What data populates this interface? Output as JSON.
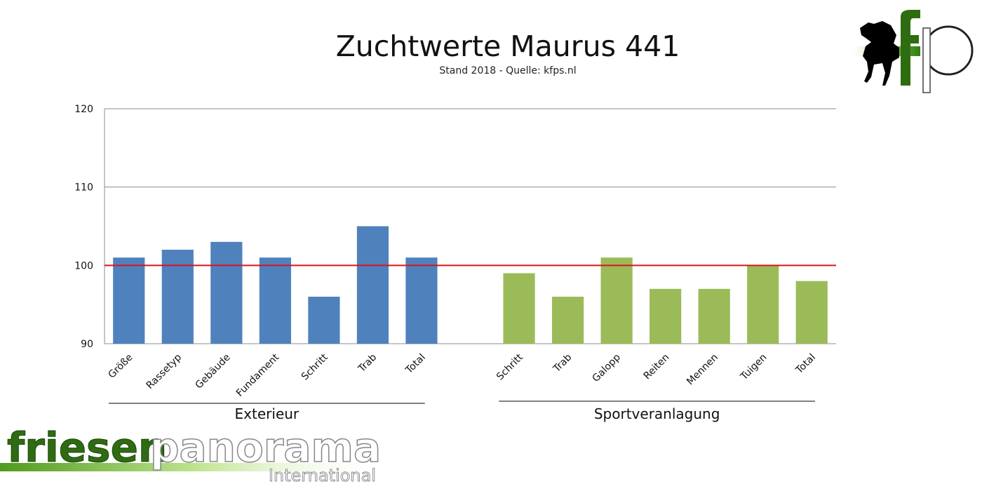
{
  "chart_data": {
    "type": "bar",
    "title": "Zuchtwerte Maurus 441",
    "subtitle": "Stand 2018 - Quelle: kfps.nl",
    "ylim": [
      90,
      120
    ],
    "yticks": [
      90,
      100,
      110,
      120
    ],
    "reference_line": 100,
    "grid": true,
    "groups": [
      {
        "name": "Exterieur",
        "color": "#4F81BD",
        "categories": [
          "Größe",
          "Rassetyp",
          "Gebäude",
          "Fundament",
          "Schritt",
          "Trab",
          "Total"
        ],
        "values": [
          101,
          102,
          103,
          101,
          96,
          105,
          101
        ]
      },
      {
        "name": "Sportveranlagung",
        "color": "#9BBB59",
        "categories": [
          "Schritt",
          "Trab",
          "Galopp",
          "Reiten",
          "Mennen",
          "Tuigen",
          "Total"
        ],
        "values": [
          99,
          96,
          101,
          97,
          97,
          100,
          98
        ]
      }
    ],
    "reference_color": "#D9141B"
  },
  "logos": {
    "top_right": "kfp",
    "bottom_left": {
      "word1": "friesen",
      "word2": "panorama",
      "sub": "International"
    }
  }
}
